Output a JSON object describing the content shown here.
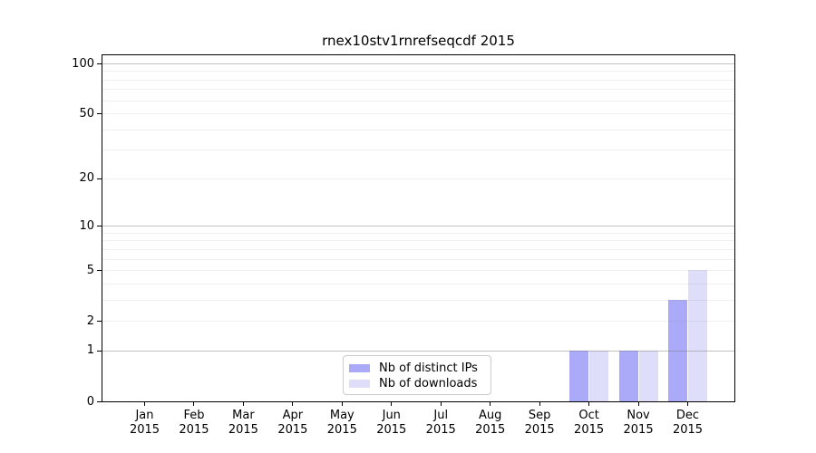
{
  "title": "rnex10stv1rnrefseqcdf 2015",
  "colors": {
    "distinct_ips": "#aaaaf9",
    "downloads": "#dedefa",
    "grid_major": "rgba(120,120,120,0.45)",
    "grid_minor": "rgba(120,120,120,0.12)",
    "axis": "#000000",
    "legend_border": "#cccccc"
  },
  "legend": {
    "items": [
      {
        "label": "Nb of distinct IPs",
        "color_key": "distinct_ips"
      },
      {
        "label": "Nb of downloads",
        "color_key": "downloads"
      }
    ]
  },
  "chart_data": {
    "type": "bar",
    "title": "rnex10stv1rnrefseqcdf 2015",
    "year": "2015",
    "months": [
      "Jan",
      "Feb",
      "Mar",
      "Apr",
      "May",
      "Jun",
      "Jul",
      "Aug",
      "Sep",
      "Oct",
      "Nov",
      "Dec"
    ],
    "series": [
      {
        "name": "Nb of distinct IPs",
        "color_key": "distinct_ips",
        "values": [
          0,
          0,
          0,
          0,
          0,
          0,
          0,
          0,
          0,
          1,
          1,
          3
        ]
      },
      {
        "name": "Nb of downloads",
        "color_key": "downloads",
        "values": [
          0,
          0,
          0,
          0,
          0,
          0,
          0,
          0,
          0,
          1,
          1,
          5
        ]
      }
    ],
    "y_scale": "log10(1+x)",
    "ylim": [
      0,
      100
    ],
    "y_ticks": [
      0,
      1,
      2,
      5,
      10,
      20,
      50,
      100
    ],
    "y_major_gridlines": [
      1,
      10,
      100
    ],
    "y_minor_gridlines": [
      2,
      3,
      4,
      5,
      6,
      7,
      8,
      9,
      20,
      30,
      40,
      50,
      60,
      70,
      80,
      90
    ],
    "grid": "horizontal",
    "legend_position": "lower-center-inside",
    "xlabel": "",
    "ylabel": ""
  }
}
